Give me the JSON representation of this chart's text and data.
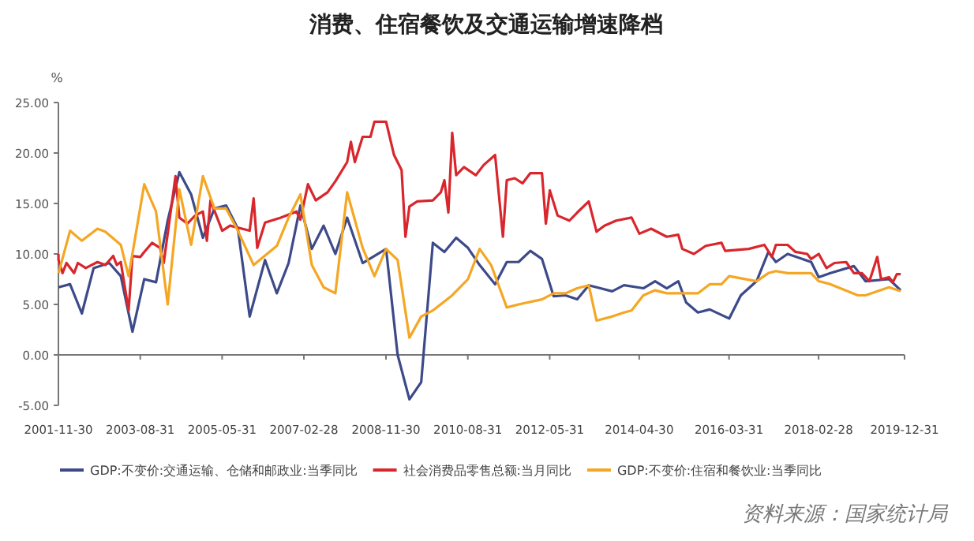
{
  "chart_data": {
    "type": "line",
    "title": "消费、住宿餐饮及交通运输增速降档",
    "ylabel": "%",
    "legend": "bottom",
    "marker": "none",
    "line_style": "solid",
    "annotations": [
      "资料来源：国家统计局"
    ],
    "xlim": [
      "2001-11-30",
      "2019-12-31"
    ],
    "xticks": [
      "2001-11-30",
      "2003-08-31",
      "2005-05-31",
      "2007-02-28",
      "2008-11-30",
      "2010-08-31",
      "2012-05-31",
      "2014-04-30",
      "2016-03-31",
      "2018-02-28",
      "2019-12-31"
    ],
    "ylim": [
      -5,
      25
    ],
    "yticks": [
      {
        "value": -5,
        "label": "-5.00"
      },
      {
        "value": 0,
        "label": "0.00"
      },
      {
        "value": 5,
        "label": "5.00"
      },
      {
        "value": 10,
        "label": "10.00"
      },
      {
        "value": 15,
        "label": "15.00"
      },
      {
        "value": 20,
        "label": "20.00"
      },
      {
        "value": 25,
        "label": "25.00"
      }
    ],
    "series": [
      {
        "name": "GDP:不变价:交通运输、仓储和邮政业:当季同比",
        "color": "#3d4a8a",
        "x": [
          "2001-12",
          "2002-03",
          "2002-06",
          "2002-09",
          "2003-01",
          "2003-04",
          "2003-07",
          "2003-10",
          "2004-01",
          "2004-04",
          "2004-07",
          "2004-10",
          "2005-01",
          "2005-04",
          "2005-07",
          "2005-10",
          "2006-01",
          "2006-05",
          "2006-08",
          "2006-11",
          "2007-02",
          "2007-05",
          "2007-08",
          "2007-11",
          "2008-02",
          "2008-06",
          "2008-12",
          "2009-03",
          "2009-06",
          "2009-09",
          "2009-12",
          "2010-03",
          "2010-06",
          "2010-09",
          "2010-12",
          "2011-04",
          "2011-07",
          "2011-10",
          "2012-01",
          "2012-04",
          "2012-07",
          "2012-10",
          "2013-01",
          "2013-04",
          "2013-10",
          "2014-01",
          "2014-06",
          "2014-09",
          "2014-12",
          "2015-03",
          "2015-05",
          "2015-08",
          "2015-11",
          "2016-04",
          "2016-07",
          "2016-11",
          "2017-02",
          "2017-04",
          "2017-07",
          "2018-01",
          "2018-03",
          "2018-06",
          "2018-12",
          "2019-03",
          "2019-09",
          "2019-12"
        ],
        "values": [
          6.7,
          7.0,
          4.1,
          8.6,
          9.1,
          7.8,
          2.3,
          7.5,
          7.2,
          13.3,
          18.1,
          15.9,
          11.6,
          14.5,
          14.8,
          12.5,
          3.8,
          9.4,
          6.1,
          9.1,
          14.8,
          10.5,
          12.8,
          10.0,
          13.6,
          9.1,
          10.5,
          0,
          -4.4,
          -2.7,
          11.1,
          10.2,
          11.6,
          10.6,
          8.9,
          7.0,
          9.2,
          9.2,
          10.3,
          9.5,
          5.8,
          5.9,
          5.5,
          6.9,
          6.3,
          6.9,
          6.6,
          7.3,
          6.6,
          7.3,
          5.2,
          4.2,
          4.5,
          3.6,
          5.9,
          7.3,
          10.2,
          9.2,
          10.0,
          9.2,
          7.7,
          8.1,
          8.8,
          7.3,
          7.5,
          6.4
        ]
      },
      {
        "name": "社会消费品零售总额:当月同比",
        "color": "#d9262c",
        "x": [
          "2001-11-30",
          "2001-12",
          "2002-01",
          "2002-02",
          "2002-04",
          "2002-05",
          "2002-07",
          "2002-10",
          "2002-12",
          "2003-02",
          "2003-03",
          "2003-04",
          "2003-06",
          "2003-07",
          "2003-09",
          "2003-10",
          "2003-12",
          "2004-02",
          "2004-03",
          "2004-06",
          "2004-07",
          "2004-09",
          "2004-11",
          "2005-01",
          "2005-02",
          "2005-03",
          "2005-06",
          "2005-08",
          "2006-01",
          "2006-02",
          "2006-03",
          "2006-05",
          "2006-09",
          "2007-01",
          "2007-02",
          "2007-04",
          "2007-06",
          "2007-09",
          "2007-11",
          "2008-02",
          "2008-03",
          "2008-04",
          "2008-06",
          "2008-08",
          "2008-09",
          "2008-12",
          "2009-02",
          "2009-04",
          "2009-05",
          "2009-06",
          "2009-08",
          "2009-12",
          "2010-02",
          "2010-03",
          "2010-04",
          "2010-05",
          "2010-06",
          "2010-08",
          "2010-11",
          "2011-01",
          "2011-04",
          "2011-06",
          "2011-07",
          "2011-09",
          "2011-11",
          "2012-01",
          "2012-04",
          "2012-05",
          "2012-06",
          "2012-08",
          "2012-11",
          "2013-01",
          "2013-04",
          "2013-06",
          "2013-08",
          "2013-11",
          "2014-03",
          "2014-05",
          "2014-08",
          "2014-12",
          "2015-03",
          "2015-04",
          "2015-07",
          "2015-10",
          "2016-02",
          "2016-03",
          "2016-09",
          "2017-01",
          "2017-03",
          "2017-04",
          "2017-07",
          "2017-09",
          "2017-12",
          "2018-01",
          "2018-03",
          "2018-05",
          "2018-07",
          "2018-10",
          "2018-12",
          "2019-02",
          "2019-04",
          "2019-06",
          "2019-07",
          "2019-09",
          "2019-10",
          "2019-11",
          "2019-12"
        ],
        "values": [
          10.0,
          9.4,
          8.1,
          9.1,
          8.1,
          9.1,
          8.6,
          9.2,
          8.9,
          9.8,
          8.9,
          9.2,
          4.4,
          9.8,
          9.7,
          10.2,
          11.1,
          10.6,
          9.1,
          17.7,
          13.6,
          13.0,
          13.8,
          14.2,
          11.3,
          15.3,
          12.3,
          12.8,
          12.3,
          15.5,
          10.6,
          13.1,
          13.6,
          14.2,
          13.4,
          16.9,
          15.3,
          16.1,
          17.2,
          19.1,
          21.1,
          19.1,
          21.6,
          21.6,
          23.1,
          23.1,
          19.8,
          18.3,
          11.7,
          14.7,
          15.2,
          15.3,
          16.1,
          17.3,
          14.1,
          22.0,
          17.8,
          18.6,
          17.8,
          18.8,
          19.8,
          11.7,
          17.3,
          17.5,
          17.0,
          18.0,
          18.0,
          13.0,
          16.3,
          13.8,
          13.3,
          14.1,
          15.2,
          12.2,
          12.8,
          13.3,
          13.6,
          12.0,
          12.5,
          11.7,
          11.9,
          10.5,
          10.0,
          10.8,
          11.1,
          10.3,
          10.5,
          10.9,
          9.7,
          10.9,
          10.9,
          10.2,
          10.0,
          9.5,
          10.0,
          8.6,
          9.1,
          9.2,
          8.1,
          8.1,
          7.3,
          9.7,
          7.5,
          7.7,
          7.2,
          8.0,
          8.0
        ]
      },
      {
        "name": "GDP:不变价:住宿和餐饮业:当季同比",
        "color": "#f5a623",
        "x": [
          "2001-12",
          "2002-03",
          "2002-06",
          "2002-10",
          "2002-12",
          "2003-04",
          "2003-06",
          "2003-10",
          "2004-01",
          "2004-04",
          "2004-07",
          "2004-10",
          "2005-01",
          "2005-04",
          "2005-07",
          "2005-10",
          "2006-02",
          "2006-08",
          "2006-11",
          "2007-02",
          "2007-05",
          "2007-08",
          "2007-11",
          "2008-02",
          "2008-06",
          "2008-09",
          "2008-12",
          "2009-03",
          "2009-06",
          "2009-09",
          "2009-12",
          "2010-05",
          "2010-09",
          "2010-12",
          "2011-03",
          "2011-07",
          "2011-10",
          "2012-04",
          "2012-07",
          "2012-10",
          "2013-01",
          "2013-04",
          "2013-06",
          "2013-10",
          "2014-01",
          "2014-03",
          "2014-06",
          "2014-09",
          "2014-12",
          "2015-08",
          "2015-11",
          "2016-02",
          "2016-04",
          "2016-11",
          "2017-02",
          "2017-04",
          "2017-07",
          "2018-01",
          "2018-03",
          "2018-06",
          "2019-01",
          "2019-03",
          "2019-09",
          "2019-12"
        ],
        "values": [
          8.1,
          12.3,
          11.3,
          12.5,
          12.2,
          10.9,
          7.8,
          16.9,
          14.2,
          5.0,
          16.4,
          10.9,
          17.7,
          14.5,
          14.5,
          12.3,
          8.9,
          10.8,
          13.6,
          15.9,
          8.9,
          6.7,
          6.1,
          16.1,
          10.6,
          7.8,
          10.5,
          9.4,
          1.7,
          3.8,
          4.4,
          5.9,
          7.5,
          10.5,
          8.9,
          4.7,
          5.0,
          5.5,
          6.1,
          6.1,
          6.6,
          6.9,
          3.4,
          3.8,
          4.2,
          4.4,
          5.9,
          6.4,
          6.1,
          6.1,
          7.0,
          7.0,
          7.8,
          7.3,
          8.1,
          8.3,
          8.1,
          8.1,
          7.3,
          7.0,
          5.9,
          5.9,
          6.7,
          6.3
        ]
      }
    ]
  }
}
